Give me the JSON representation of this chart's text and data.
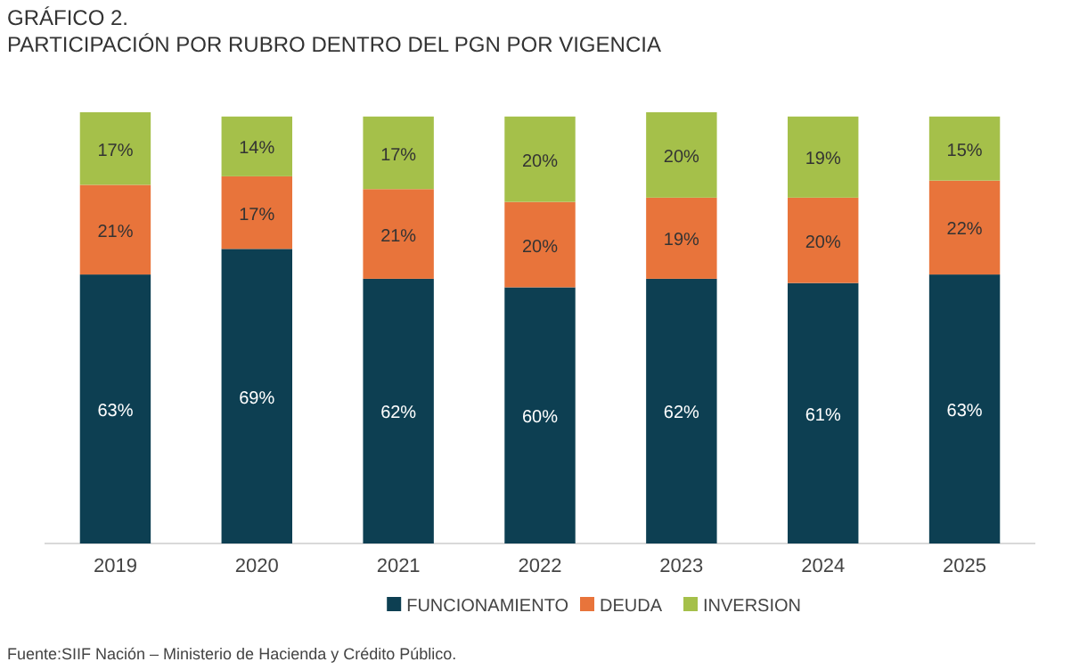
{
  "chart_data": {
    "type": "bar",
    "title": "GRÁFICO 2.",
    "subtitle": "PARTICIPACIÓN POR RUBRO DENTRO DEL PGN POR VIGENCIA",
    "categories": [
      "2019",
      "2020",
      "2021",
      "2022",
      "2023",
      "2024",
      "2025"
    ],
    "series": [
      {
        "name": "FUNCIONAMIENTO",
        "color": "#0d3f52",
        "values": [
          63,
          69,
          62,
          60,
          62,
          61,
          63
        ],
        "value_labels": [
          "63%",
          "69%",
          "62%",
          "60%",
          "62%",
          "61%",
          "63%"
        ]
      },
      {
        "name": "DEUDA",
        "color": "#e8743b",
        "values": [
          21,
          17,
          21,
          20,
          19,
          20,
          22
        ],
        "value_labels": [
          "21%",
          "17%",
          "21%",
          "20%",
          "19%",
          "20%",
          "22%"
        ]
      },
      {
        "name": "INVERSION",
        "color": "#a5c04a",
        "values": [
          17,
          14,
          17,
          20,
          20,
          19,
          15
        ],
        "value_labels": [
          "17%",
          "14%",
          "17%",
          "20%",
          "20%",
          "19%",
          "15%"
        ]
      }
    ],
    "stacked": true,
    "tick_labels": "x",
    "legend": "bottom",
    "annotations": [
      "Fuente:SIIF Nación – Ministerio de Hacienda y Crédito Público."
    ]
  }
}
